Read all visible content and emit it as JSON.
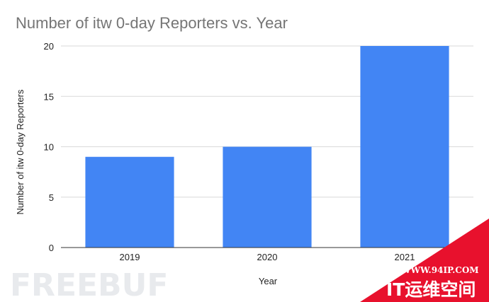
{
  "chart_data": {
    "type": "bar",
    "title": "Number of itw 0-day Reporters vs. Year",
    "xlabel": "Year",
    "ylabel": "Number of itw 0-day Reporters",
    "categories": [
      "2019",
      "2020",
      "2021"
    ],
    "values": [
      9,
      10,
      20
    ],
    "ylim": [
      0,
      20
    ],
    "yticks": [
      "0",
      "5",
      "10",
      "15",
      "20"
    ],
    "grid": true,
    "bar_color": "#4285f4"
  },
  "watermarks": {
    "left_logo": "FREEBUF",
    "banner_url": "WWW.94IP.COM",
    "banner_text": "IT运维空间",
    "banner_color": "#e8112d"
  }
}
